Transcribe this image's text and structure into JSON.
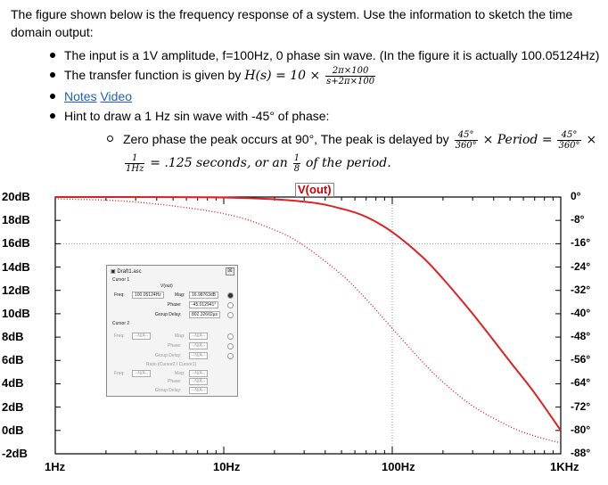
{
  "intro": "The figure shown below is the frequency response of a system. Use the information to sketch the time domain output:",
  "bullets": {
    "input": "The input is a 1V amplitude, f=100Hz, 0 phase sin wave. (In the figure it is actually 100.05124Hz)",
    "tf_prefix": "The transfer function is given by",
    "tf_lhs": "H(s) = 10 ×",
    "tf_num": "2π×100",
    "tf_den": "s+2π×100",
    "notes": "Notes",
    "video": "Video",
    "hint": "Hint to draw a 1 Hz sin wave with -45° of phase:",
    "sub1_text": "Zero phase the peak occurs at 90°, The peak is delayed by",
    "sub1_frac_num": "45°",
    "sub1_frac_den": "360°",
    "sub1_mid": "× Period =",
    "sub1_frac2_num": "45°",
    "sub1_frac2_den": "360°",
    "sub1_tail": "×",
    "sub2_frac_num": "1",
    "sub2_frac_den": "1Hz",
    "sub2_mid": "= .125 seconds, or an",
    "sub2_frac2_num": "1",
    "sub2_frac2_den": "8",
    "sub2_tail": "of the period."
  },
  "chart_data": {
    "type": "line",
    "title": "V(out)",
    "x_scale": "log",
    "xlim": [
      1,
      1000
    ],
    "x_tick_labels": [
      "1Hz",
      "10Hz",
      "100Hz",
      "1KHz"
    ],
    "y_tick_labels": [
      "20dB",
      "18dB",
      "16dB",
      "14dB",
      "12dB",
      "10dB",
      "8dB",
      "6dB",
      "4dB",
      "2dB",
      "0dB",
      "-2dB"
    ],
    "ylim": [
      -2,
      20
    ],
    "y2_tick_labels": [
      "0°",
      "-8°",
      "-16°",
      "-24°",
      "-32°",
      "-40°",
      "-48°",
      "-56°",
      "-64°",
      "-72°",
      "-80°",
      "-88°"
    ],
    "y2lim": [
      -88,
      0
    ],
    "grid": "dotted-lines-at-16dB-and-100Hz",
    "series": [
      {
        "style": "solid",
        "color": "#e02020",
        "axis": "left",
        "x": [
          1,
          10,
          30,
          50,
          70,
          100,
          150,
          200,
          300,
          500,
          700,
          1000
        ],
        "y": [
          20,
          19.96,
          19.6,
          19.0,
          18.3,
          17.0,
          14.9,
          13.0,
          10.0,
          5.9,
          3.2,
          0.0
        ]
      },
      {
        "style": "dotted",
        "color": "#e02020",
        "axis": "right",
        "x": [
          1,
          3,
          10,
          20,
          30,
          50,
          70,
          100,
          150,
          200,
          300,
          500,
          700,
          1000
        ],
        "y": [
          -0.6,
          -1.7,
          -5.7,
          -11.3,
          -16.7,
          -26.6,
          -35.0,
          -45.0,
          -56.3,
          -63.4,
          -71.6,
          -78.7,
          -81.9,
          -84.3
        ]
      }
    ],
    "colors": {
      "curve": "#e02020",
      "frame": "#000000"
    }
  },
  "cursor_window": {
    "title": "Draft1.asc",
    "close_glyph": "☒",
    "cursor1_label": "Cursor 1",
    "vout_label": "V(out)",
    "freq_label": "Freq:",
    "freq_value": "100.05124Hz",
    "mag_label": "Mag:",
    "mag_value": "16.98763dB",
    "phase_label": "Phase:",
    "phase_value": "-45.012941°",
    "gd_label": "Group Delay:",
    "gd_value": "802.32602µs",
    "cursor2_label": "Cursor 2",
    "na": "--N/A--",
    "ratio_label": "Ratio (Cursor2 / Cursor1)"
  }
}
